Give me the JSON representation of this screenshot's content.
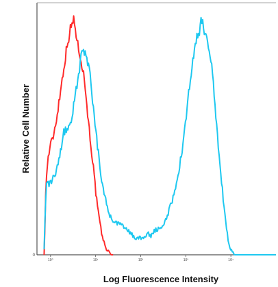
{
  "chart_data": {
    "type": "line",
    "xlabel": "Log Fluorescence Intensity",
    "ylabel": "Relative Cell Number",
    "x_scale": "log",
    "xlim": [
      0.5,
      100000
    ],
    "ylim": [
      0,
      1.06
    ],
    "x_ticks": [
      1,
      10,
      100,
      1000,
      10000
    ],
    "x_tick_labels": [
      "10⁰",
      "10¹",
      "10²",
      "10³",
      "10⁴"
    ],
    "y_tick_labels": [
      "0"
    ],
    "grid": false,
    "series": [
      {
        "color": "#ff2a2a",
        "x": [
          0.72,
          0.8,
          0.9,
          1.0,
          1.15,
          1.3,
          1.5,
          1.7,
          2.0,
          2.3,
          2.6,
          3.0,
          3.3,
          3.6,
          4.0,
          4.5,
          5.0,
          5.6,
          6.3,
          7.0,
          8.0,
          9.0,
          10.0,
          11.0,
          12.5,
          14.0,
          16.0,
          18.0,
          20.0,
          22.0,
          25.0
        ],
        "y": [
          0.0,
          0.32,
          0.42,
          0.46,
          0.5,
          0.55,
          0.63,
          0.7,
          0.8,
          0.87,
          0.93,
          0.97,
          0.99,
          0.95,
          0.88,
          0.85,
          0.8,
          0.74,
          0.65,
          0.55,
          0.45,
          0.36,
          0.27,
          0.2,
          0.13,
          0.08,
          0.04,
          0.02,
          0.01,
          0.0,
          0.0
        ]
      },
      {
        "color": "#1ec8f0",
        "x": [
          0.72,
          0.8,
          0.9,
          1.0,
          1.2,
          1.4,
          1.7,
          2.0,
          2.5,
          3.0,
          3.6,
          4.3,
          5.0,
          5.7,
          6.5,
          7.5,
          8.5,
          10.0,
          12.0,
          14.0,
          17.0,
          20.0,
          25.0,
          30.0,
          40.0,
          50.0,
          60.0,
          75.0,
          90.0,
          110.0,
          140.0,
          170.0,
          200.0,
          250.0,
          300.0,
          350.0,
          400.0,
          450.0,
          500.0,
          600.0,
          700.0,
          800.0,
          900.0,
          1000.0,
          1200.0,
          1400.0,
          1700.0,
          2000.0,
          2300.0,
          2600.0,
          3000.0,
          3500.0,
          4000.0,
          4500.0,
          5000.0,
          5500.0,
          6300.0,
          7000.0,
          8000.0,
          9000.0,
          10000.0,
          11000.0,
          12000.0,
          14000.0,
          17000.0,
          20000.0,
          30000.0,
          100000.0
        ],
        "y": [
          0.03,
          0.29,
          0.3,
          0.3,
          0.33,
          0.37,
          0.45,
          0.52,
          0.54,
          0.58,
          0.68,
          0.78,
          0.85,
          0.84,
          0.82,
          0.75,
          0.66,
          0.52,
          0.4,
          0.3,
          0.23,
          0.17,
          0.14,
          0.13,
          0.12,
          0.11,
          0.09,
          0.07,
          0.07,
          0.07,
          0.09,
          0.08,
          0.1,
          0.11,
          0.12,
          0.14,
          0.17,
          0.2,
          0.23,
          0.29,
          0.35,
          0.42,
          0.49,
          0.56,
          0.7,
          0.8,
          0.9,
          0.94,
          1.0,
          0.93,
          0.89,
          0.85,
          0.75,
          0.62,
          0.52,
          0.42,
          0.3,
          0.2,
          0.11,
          0.05,
          0.02,
          0.01,
          0.0,
          0.0,
          0.0,
          0.0,
          0.0,
          0.0
        ]
      }
    ]
  }
}
